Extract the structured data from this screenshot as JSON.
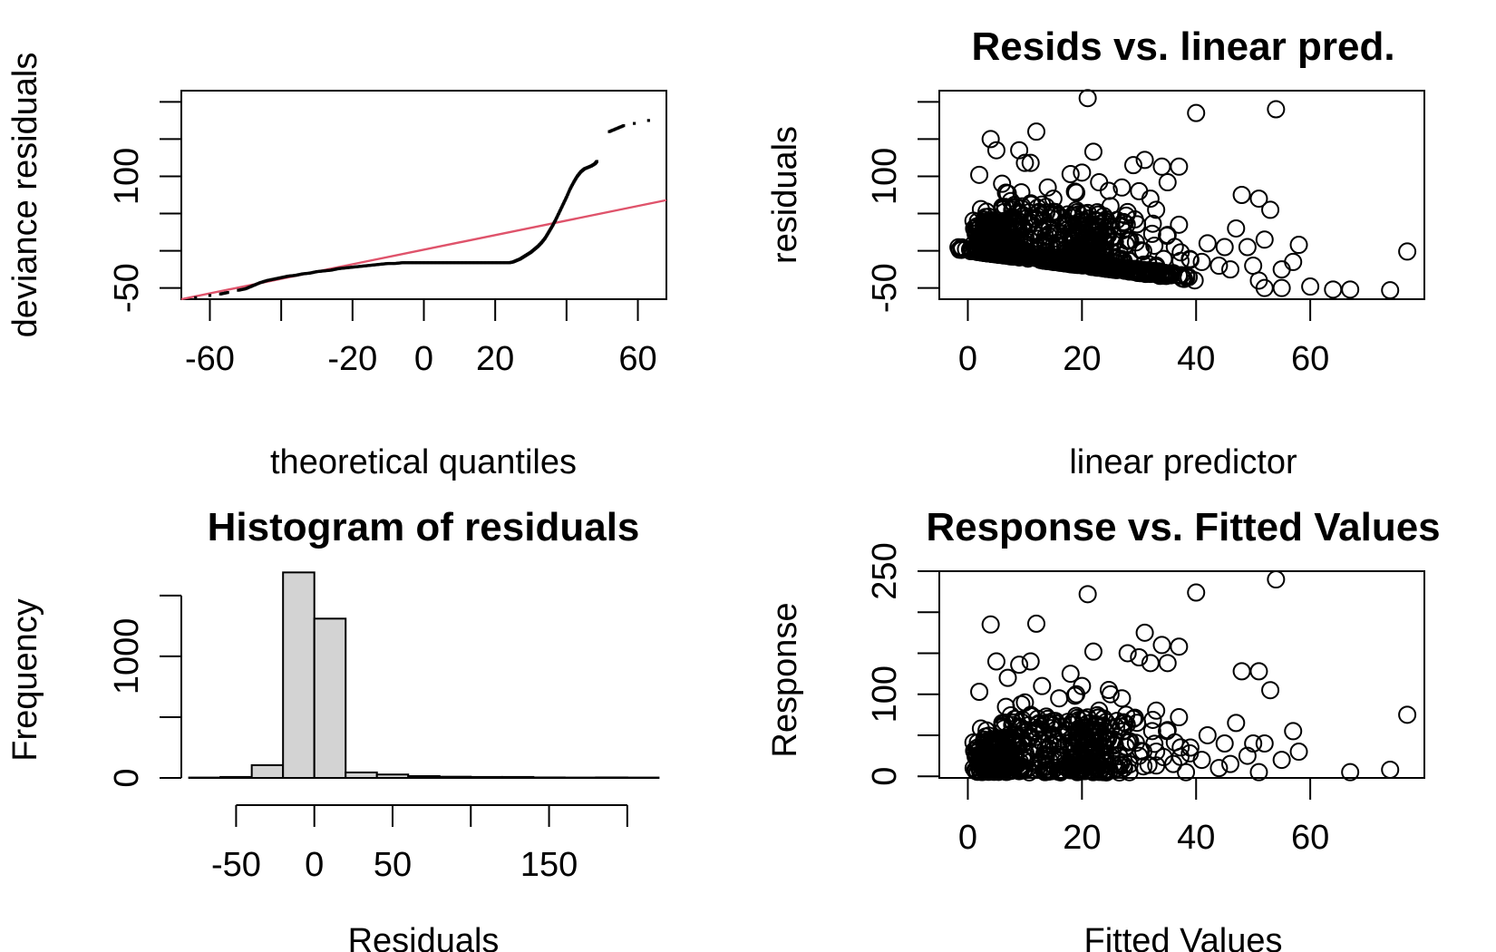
{
  "colors": {
    "foreground": "#000000",
    "reference_line": "#DF536B",
    "histogram_fill": "#D3D3D3",
    "background": "#FFFFFF"
  },
  "chart_data": [
    {
      "panel": "top-left",
      "type": "scatter",
      "title": "",
      "xlabel": "theoretical quantiles",
      "ylabel": "deviance residuals",
      "xticks": [
        "-60",
        "-20",
        "0",
        "20",
        "60"
      ],
      "xtick_values": [
        -60,
        -40,
        -20,
        0,
        20,
        40,
        60
      ],
      "yticks": [
        "-50",
        "100"
      ],
      "ytick_values": [
        -50,
        0,
        50,
        100,
        150,
        200
      ],
      "xlim": [
        -68,
        68
      ],
      "ylim": [
        -65,
        215
      ],
      "reference_line": {
        "color": "#DF536B",
        "points": [
          [
            -68,
            -65
          ],
          [
            68,
            68
          ]
        ]
      },
      "qq_points": [
        [
          -64,
          -63
        ],
        [
          -60,
          -60
        ],
        [
          -57,
          -58
        ],
        [
          -55,
          -56
        ],
        [
          -52,
          -53
        ],
        [
          -50,
          -51
        ],
        [
          -48,
          -47
        ],
        [
          -46,
          -43
        ],
        [
          -44,
          -40
        ],
        [
          -42,
          -38
        ],
        [
          -40,
          -36
        ],
        [
          -38,
          -34
        ],
        [
          -36,
          -33
        ],
        [
          -34,
          -31
        ],
        [
          -32,
          -30
        ],
        [
          -30,
          -28
        ],
        [
          -28,
          -27
        ],
        [
          -26,
          -26
        ],
        [
          -24,
          -24
        ],
        [
          -22,
          -23
        ],
        [
          -20,
          -22
        ],
        [
          -18,
          -21
        ],
        [
          -16,
          -20
        ],
        [
          -14,
          -19
        ],
        [
          -12,
          -18
        ],
        [
          -10,
          -17
        ],
        [
          -8,
          -17
        ],
        [
          -6,
          -16
        ],
        [
          -4,
          -16
        ],
        [
          -2,
          -16
        ],
        [
          0,
          -16
        ],
        [
          2,
          -16
        ],
        [
          4,
          -16
        ],
        [
          6,
          -16
        ],
        [
          8,
          -16
        ],
        [
          10,
          -16
        ],
        [
          12,
          -16
        ],
        [
          14,
          -16
        ],
        [
          16,
          -16
        ],
        [
          18,
          -16
        ],
        [
          20,
          -16
        ],
        [
          22,
          -16
        ],
        [
          24,
          -16
        ],
        [
          25,
          -15
        ],
        [
          26,
          -13
        ],
        [
          27,
          -11
        ],
        [
          28,
          -8
        ],
        [
          29,
          -5
        ],
        [
          30,
          -2
        ],
        [
          31,
          2
        ],
        [
          32,
          6
        ],
        [
          33,
          11
        ],
        [
          34,
          17
        ],
        [
          35,
          25
        ],
        [
          36,
          33
        ],
        [
          37,
          42
        ],
        [
          38,
          52
        ],
        [
          39,
          62
        ],
        [
          40,
          72
        ],
        [
          41,
          83
        ],
        [
          42,
          92
        ],
        [
          43,
          100
        ],
        [
          44,
          106
        ],
        [
          45,
          110
        ],
        [
          46,
          112
        ],
        [
          47,
          114
        ],
        [
          48,
          117
        ],
        [
          48.5,
          120
        ],
        [
          52,
          160
        ],
        [
          54,
          164
        ],
        [
          56,
          168
        ],
        [
          59,
          171
        ],
        [
          63,
          175
        ]
      ]
    },
    {
      "panel": "top-right",
      "type": "scatter",
      "title": "Resids vs. linear pred.",
      "xlabel": "linear predictor",
      "ylabel": "residuals",
      "xticks": [
        "0",
        "20",
        "40",
        "60"
      ],
      "xtick_values": [
        0,
        20,
        40,
        60
      ],
      "yticks": [
        "-50",
        "100"
      ],
      "ytick_values": [
        -50,
        0,
        50,
        100,
        150,
        200
      ],
      "xlim": [
        -5,
        80
      ],
      "ylim": [
        -65,
        215
      ],
      "outlier_points": [
        [
          4,
          150
        ],
        [
          12,
          160
        ],
        [
          21,
          205
        ],
        [
          40,
          185
        ],
        [
          54,
          190
        ],
        [
          31,
          122
        ],
        [
          34,
          113
        ],
        [
          37,
          113
        ],
        [
          5,
          135
        ],
        [
          9,
          135
        ],
        [
          11,
          118
        ],
        [
          18,
          103
        ],
        [
          22,
          133
        ],
        [
          27,
          85
        ],
        [
          30,
          80
        ],
        [
          32,
          70
        ],
        [
          35,
          92
        ],
        [
          48,
          75
        ],
        [
          51,
          70
        ],
        [
          53,
          55
        ],
        [
          2,
          102
        ],
        [
          7,
          77
        ],
        [
          13,
          62
        ],
        [
          16,
          47
        ],
        [
          19,
          78
        ],
        [
          25,
          60
        ],
        [
          28,
          52
        ],
        [
          33,
          55
        ],
        [
          37,
          35
        ],
        [
          42,
          10
        ],
        [
          45,
          5
        ],
        [
          47,
          30
        ],
        [
          49,
          5
        ],
        [
          52,
          15
        ],
        [
          55,
          -25
        ],
        [
          57,
          -15
        ],
        [
          58,
          8
        ],
        [
          60,
          -48
        ],
        [
          64,
          -52
        ],
        [
          67,
          -52
        ],
        [
          74,
          -53
        ],
        [
          77,
          -1
        ],
        [
          44,
          -20
        ],
        [
          46,
          -25
        ],
        [
          51,
          -40
        ],
        [
          52,
          -50
        ],
        [
          55,
          -50
        ],
        [
          50,
          -20
        ],
        [
          41,
          -15
        ],
        [
          39,
          -12
        ],
        [
          36,
          -30
        ],
        [
          33,
          -22
        ],
        [
          30,
          -25
        ],
        [
          26,
          -10
        ],
        [
          24,
          40
        ],
        [
          20,
          105
        ],
        [
          10,
          118
        ],
        [
          14,
          85
        ],
        [
          6,
          90
        ],
        [
          8,
          45
        ],
        [
          3,
          30
        ],
        [
          15,
          70
        ],
        [
          23,
          92
        ],
        [
          29,
          115
        ]
      ]
    },
    {
      "panel": "bottom-left",
      "type": "bar",
      "title": "Histogram of residuals",
      "xlabel": "Residuals",
      "ylabel": "Frequency",
      "xticks": [
        "-50",
        "0",
        "50",
        "150"
      ],
      "xtick_values": [
        -50,
        0,
        50,
        100,
        150,
        200
      ],
      "yticks": [
        "0",
        "1000"
      ],
      "ytick_values": [
        0,
        500,
        1000,
        1500
      ],
      "xlim": [
        -85,
        225
      ],
      "ylim": [
        0,
        1700
      ],
      "bins": [
        {
          "from": -80,
          "to": -60,
          "count": 3
        },
        {
          "from": -60,
          "to": -40,
          "count": 8
        },
        {
          "from": -40,
          "to": -20,
          "count": 105
        },
        {
          "from": -20,
          "to": 0,
          "count": 1690
        },
        {
          "from": 0,
          "to": 20,
          "count": 1310
        },
        {
          "from": 20,
          "to": 40,
          "count": 45
        },
        {
          "from": 40,
          "to": 60,
          "count": 28
        },
        {
          "from": 60,
          "to": 80,
          "count": 15
        },
        {
          "from": 80,
          "to": 100,
          "count": 10
        },
        {
          "from": 100,
          "to": 120,
          "count": 8
        },
        {
          "from": 120,
          "to": 140,
          "count": 8
        },
        {
          "from": 140,
          "to": 160,
          "count": 4
        },
        {
          "from": 160,
          "to": 180,
          "count": 3
        },
        {
          "from": 180,
          "to": 200,
          "count": 4
        },
        {
          "from": 200,
          "to": 220,
          "count": 3
        }
      ]
    },
    {
      "panel": "bottom-right",
      "type": "scatter",
      "title": "Response vs. Fitted Values",
      "xlabel": "Fitted Values",
      "ylabel": "Response",
      "xticks": [
        "0",
        "20",
        "40",
        "60"
      ],
      "xtick_values": [
        0,
        20,
        40,
        60
      ],
      "yticks": [
        "0",
        "100",
        "250"
      ],
      "ytick_values": [
        0,
        50,
        100,
        150,
        200,
        250
      ],
      "xlim": [
        -5,
        80
      ],
      "ylim": [
        -2,
        250
      ],
      "outlier_points": [
        [
          4,
          185
        ],
        [
          12,
          186
        ],
        [
          21,
          222
        ],
        [
          40,
          224
        ],
        [
          54,
          240
        ],
        [
          31,
          175
        ],
        [
          34,
          160
        ],
        [
          37,
          158
        ],
        [
          5,
          140
        ],
        [
          9,
          136
        ],
        [
          11,
          140
        ],
        [
          18,
          125
        ],
        [
          22,
          152
        ],
        [
          28,
          150
        ],
        [
          30,
          145
        ],
        [
          32,
          138
        ],
        [
          35,
          138
        ],
        [
          48,
          128
        ],
        [
          51,
          128
        ],
        [
          53,
          105
        ],
        [
          2,
          103
        ],
        [
          7,
          120
        ],
        [
          13,
          110
        ],
        [
          16,
          95
        ],
        [
          19,
          100
        ],
        [
          25,
          100
        ],
        [
          27,
          95
        ],
        [
          33,
          80
        ],
        [
          37,
          72
        ],
        [
          42,
          50
        ],
        [
          45,
          40
        ],
        [
          47,
          65
        ],
        [
          50,
          40
        ],
        [
          52,
          40
        ],
        [
          55,
          20
        ],
        [
          57,
          55
        ],
        [
          58,
          30
        ],
        [
          60,
          0
        ],
        [
          65,
          0
        ],
        [
          67,
          5
        ],
        [
          74,
          8
        ],
        [
          77,
          75
        ],
        [
          44,
          10
        ],
        [
          46,
          15
        ],
        [
          51,
          5
        ],
        [
          54,
          0
        ],
        [
          56,
          0
        ],
        [
          49,
          25
        ],
        [
          41,
          20
        ],
        [
          39,
          35
        ],
        [
          36,
          15
        ],
        [
          33,
          30
        ],
        [
          30,
          25
        ],
        [
          26,
          60
        ],
        [
          24,
          55
        ],
        [
          20,
          110
        ],
        [
          10,
          90
        ],
        [
          14,
          70
        ],
        [
          6,
          60
        ],
        [
          8,
          45
        ],
        [
          3,
          25
        ],
        [
          15,
          50
        ],
        [
          23,
          80
        ],
        [
          29,
          70
        ]
      ]
    }
  ]
}
